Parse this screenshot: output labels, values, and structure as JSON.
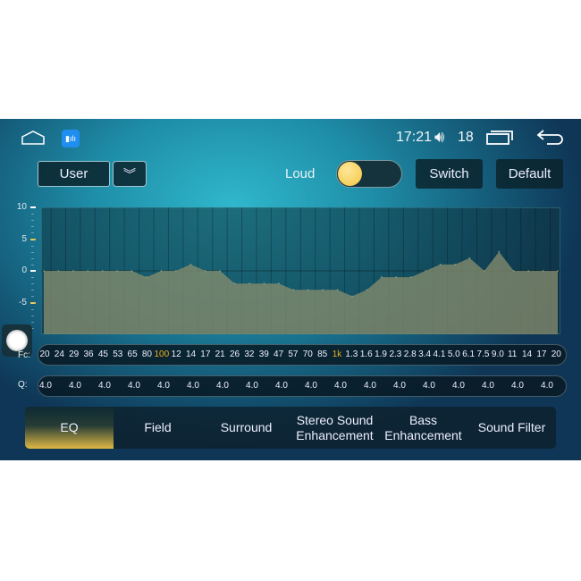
{
  "status": {
    "time": "17:21",
    "volume": "18",
    "icons": [
      "home-icon",
      "app-eq-icon",
      "volume-icon",
      "recent-apps-icon",
      "back-icon"
    ]
  },
  "controls": {
    "preset": "User",
    "loud_label": "Loud",
    "loud_on": false,
    "switch_label": "Switch",
    "default_label": "Default"
  },
  "chart_data": {
    "type": "area",
    "ylim": [
      -10,
      10
    ],
    "y_ticks": [
      "10",
      "5",
      "0",
      "-5"
    ],
    "x": [
      "20",
      "24",
      "29",
      "36",
      "45",
      "53",
      "65",
      "80",
      "100",
      "12",
      "14",
      "17",
      "21",
      "26",
      "32",
      "39",
      "47",
      "57",
      "70",
      "85",
      "1k",
      "1.3",
      "1.6",
      "1.9",
      "2.3",
      "2.8",
      "3.4",
      "4.1",
      "5.0",
      "6.1",
      "7.5",
      "9.0",
      "11",
      "14",
      "17",
      "20"
    ],
    "values": [
      0,
      0,
      0,
      0,
      0,
      0,
      0,
      -1,
      0,
      0,
      1,
      0,
      0,
      -2,
      -2,
      -2,
      -2,
      -3,
      -3,
      -3,
      -3,
      -4,
      -3,
      -1,
      -1,
      -1,
      0,
      1,
      1,
      2,
      0,
      3,
      0,
      0,
      0,
      0
    ],
    "highlight": [
      "100",
      "1k"
    ]
  },
  "fc_label": "Fc:",
  "q_label": "Q:",
  "q_values": [
    "4.0",
    "4.0",
    "4.0",
    "4.0",
    "4.0",
    "4.0",
    "4.0",
    "4.0",
    "4.0",
    "4.0",
    "4.0",
    "4.0",
    "4.0",
    "4.0",
    "4.0",
    "4.0",
    "4.0",
    "4.0"
  ],
  "tabs": [
    {
      "line1": "EQ",
      "line2": ""
    },
    {
      "line1": "Field",
      "line2": ""
    },
    {
      "line1": "Surround",
      "line2": ""
    },
    {
      "line1": "Stereo Sound",
      "line2": "Enhancement"
    },
    {
      "line1": "Bass",
      "line2": "Enhancement"
    },
    {
      "line1": "Sound Filter",
      "line2": ""
    }
  ],
  "colors": {
    "accent": "#e0b845",
    "fill": "#8a8f6e",
    "highlight_text": "#e8b020"
  }
}
